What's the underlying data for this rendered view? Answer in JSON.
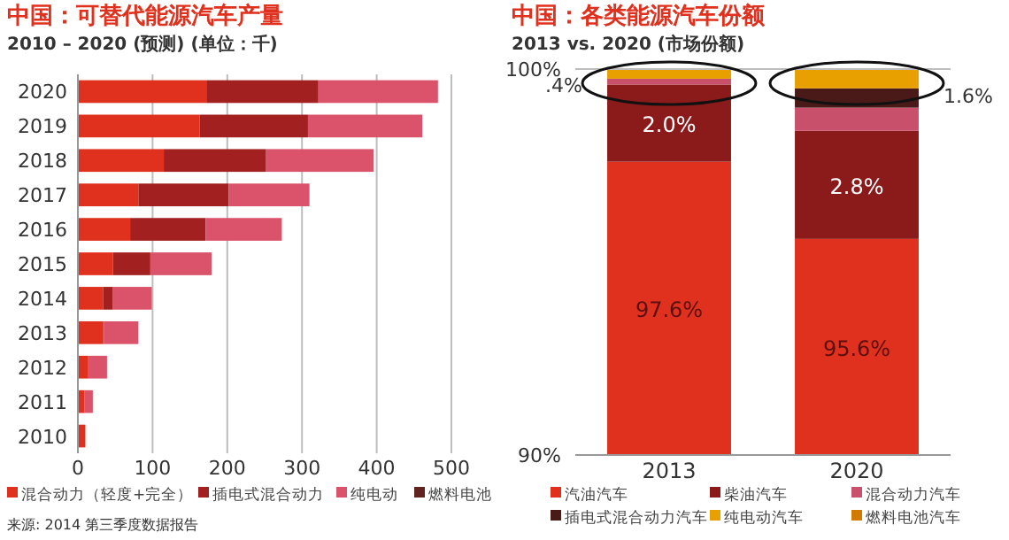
{
  "chart_data": [
    {
      "type": "bar",
      "orientation": "horizontal",
      "stacked": true,
      "title": "中国：可替代能源汽车产量",
      "subtitle": "2010 – 2020 (预测) (单位：千)",
      "categories": [
        "2020",
        "2019",
        "2018",
        "2017",
        "2016",
        "2015",
        "2014",
        "2013",
        "2012",
        "2011",
        "2010"
      ],
      "series": [
        {
          "name": "混合动力（轻度+完全）",
          "color": "#e0301e",
          "values": [
            172,
            163,
            115,
            81,
            70,
            47,
            34,
            34,
            14,
            9,
            10
          ]
        },
        {
          "name": "插电式混合动力",
          "color": "#a32020",
          "values": [
            150,
            145,
            137,
            121,
            101,
            50,
            13,
            1,
            0,
            0,
            0
          ]
        },
        {
          "name": "纯电动",
          "color": "#db536a",
          "values": [
            160,
            153,
            144,
            108,
            102,
            82,
            52,
            46,
            25,
            11,
            0
          ]
        },
        {
          "name": "燃料电池",
          "color": "#602320",
          "values": [
            0,
            0,
            0,
            0,
            0,
            0,
            0,
            0,
            0,
            0,
            0
          ]
        }
      ],
      "xlim": [
        0,
        500
      ],
      "xticks": [
        0,
        100,
        200,
        300,
        400,
        500
      ],
      "grid": "x",
      "legend": "bottom",
      "annotations": [
        "来源: 2014 第三季度数据报告"
      ]
    },
    {
      "type": "bar",
      "stacked": true,
      "title": "中国：各类能源汽车份额",
      "subtitle": "2013 vs. 2020 (市场份额)",
      "categories": [
        "2013",
        "2020"
      ],
      "series": [
        {
          "name": "汽油汽车",
          "color": "#e0301e",
          "values": [
            97.6,
            95.6
          ],
          "value_labels": [
            "97.6%",
            "95.6%"
          ]
        },
        {
          "name": "柴油汽车",
          "color": "#8b1a1a",
          "base": [
            97.6,
            95.6
          ],
          "values": [
            2.0,
            2.8
          ],
          "value_labels": [
            "2.0%",
            "2.8%"
          ]
        },
        {
          "name": "混合动力汽车",
          "color": "#c8506a",
          "base": [
            99.6,
            98.4
          ],
          "values": [
            0.15,
            0.6
          ]
        },
        {
          "name": "插电式混合动力汽车",
          "color": "#4a1a18",
          "base": [
            null,
            99.0
          ],
          "values": [
            null,
            0.5
          ]
        },
        {
          "name": "纯电动汽车",
          "color": "#e8a000",
          "base": [
            99.75,
            99.5
          ],
          "values": [
            0.25,
            0.5
          ]
        },
        {
          "name": "燃料电池汽车",
          "color": "#d17a00",
          "values": [
            null,
            null
          ]
        }
      ],
      "ylim": [
        90,
        100
      ],
      "yticks": [
        {
          "value": 90,
          "label": "90%"
        },
        {
          "value": 100,
          "label": "100%"
        }
      ],
      "ref_lines": [
        {
          "axis": "y",
          "value": 100
        }
      ],
      "legend": "bottom",
      "annotations": [
        ".4%",
        "1.6%"
      ]
    }
  ]
}
